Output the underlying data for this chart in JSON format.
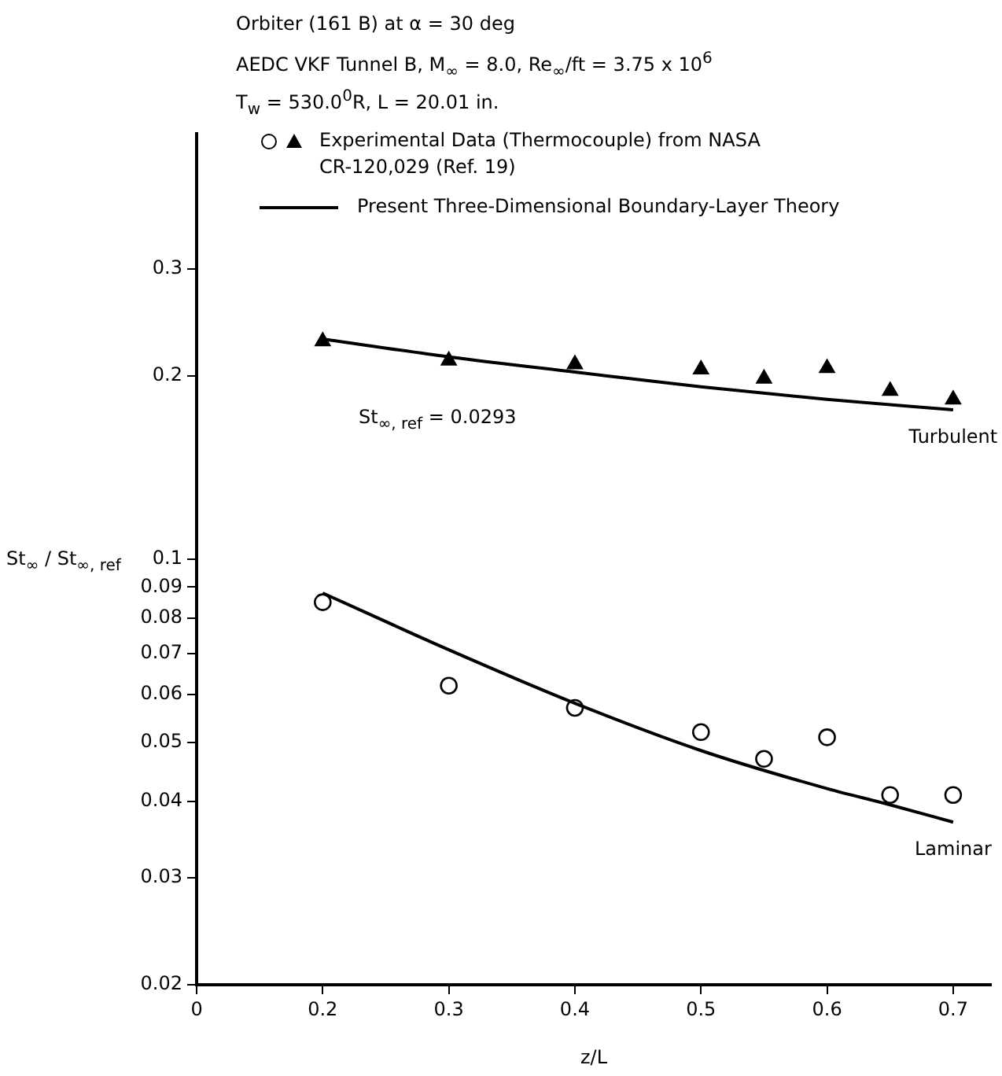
{
  "chart_data": {
    "type": "line",
    "title": "Orbiter (161 B) at α = 30 deg",
    "subtitle": "AEDC VKF Tunnel B, M$_{∞}$ = 8.0, Re$_{∞}$/ft = 3.75 x 10$^{6}$",
    "xlabel": "z/L",
    "ylabel": "St$_{∞}$ / St$_{∞, ref}$",
    "annotations": [
      "T$_{w}$ = 530.0$^{0}$R, L = 20.01 in.",
      "St$_{∞, ref}$ = 0.0293",
      {
        "text": "Turbulent",
        "x": 0.7,
        "y": 0.176
      },
      {
        "text": "Laminar",
        "x": 0.7,
        "y": 0.037
      }
    ],
    "series": [
      {
        "type": "scatter",
        "marker": "circle",
        "color": "#000000",
        "x": [
          0.2,
          0.3,
          0.4,
          0.5,
          0.55,
          0.6,
          0.65,
          0.7
        ],
        "values": [
          0.085,
          0.062,
          0.057,
          0.052,
          0.047,
          0.051,
          0.041,
          0.041
        ]
      },
      {
        "name": "Experimental Data (Thermocouple) from NASA CR-120,029 (Ref. 19)",
        "type": "scatter",
        "marker": "triangle",
        "color": "#000000",
        "x": [
          0.2,
          0.3,
          0.4,
          0.5,
          0.55,
          0.6,
          0.65,
          0.7
        ],
        "values": [
          0.228,
          0.212,
          0.209,
          0.205,
          0.198,
          0.206,
          0.189,
          0.183
        ]
      },
      {
        "name": "Present Three-Dimensional Boundary-Layer Theory",
        "color": "#000000",
        "x": [
          0.2,
          0.3,
          0.4,
          0.5,
          0.6,
          0.65,
          0.7
        ],
        "values": [
          0.088,
          0.071,
          0.058,
          0.0485,
          0.042,
          0.0395,
          0.037
        ]
      },
      {
        "color": "#000000",
        "x": [
          0.2,
          0.3,
          0.4,
          0.5,
          0.6,
          0.7
        ],
        "values": [
          0.23,
          0.215,
          0.203,
          0.192,
          0.183,
          0.176
        ]
      }
    ],
    "xlim": [
      0.1,
      0.73
    ],
    "xticks": [
      {
        "value": 0.1,
        "label": "0"
      },
      0.2,
      0.3,
      0.4,
      0.5,
      0.6,
      0.7
    ],
    "ylim": [
      0.02,
      0.5
    ],
    "yticks": [
      0.02,
      0.03,
      0.04,
      0.05,
      0.06,
      0.07,
      0.08,
      0.09,
      0.1,
      0.2,
      0.3
    ],
    "log": "y",
    "grid": false,
    "legend": "top"
  }
}
